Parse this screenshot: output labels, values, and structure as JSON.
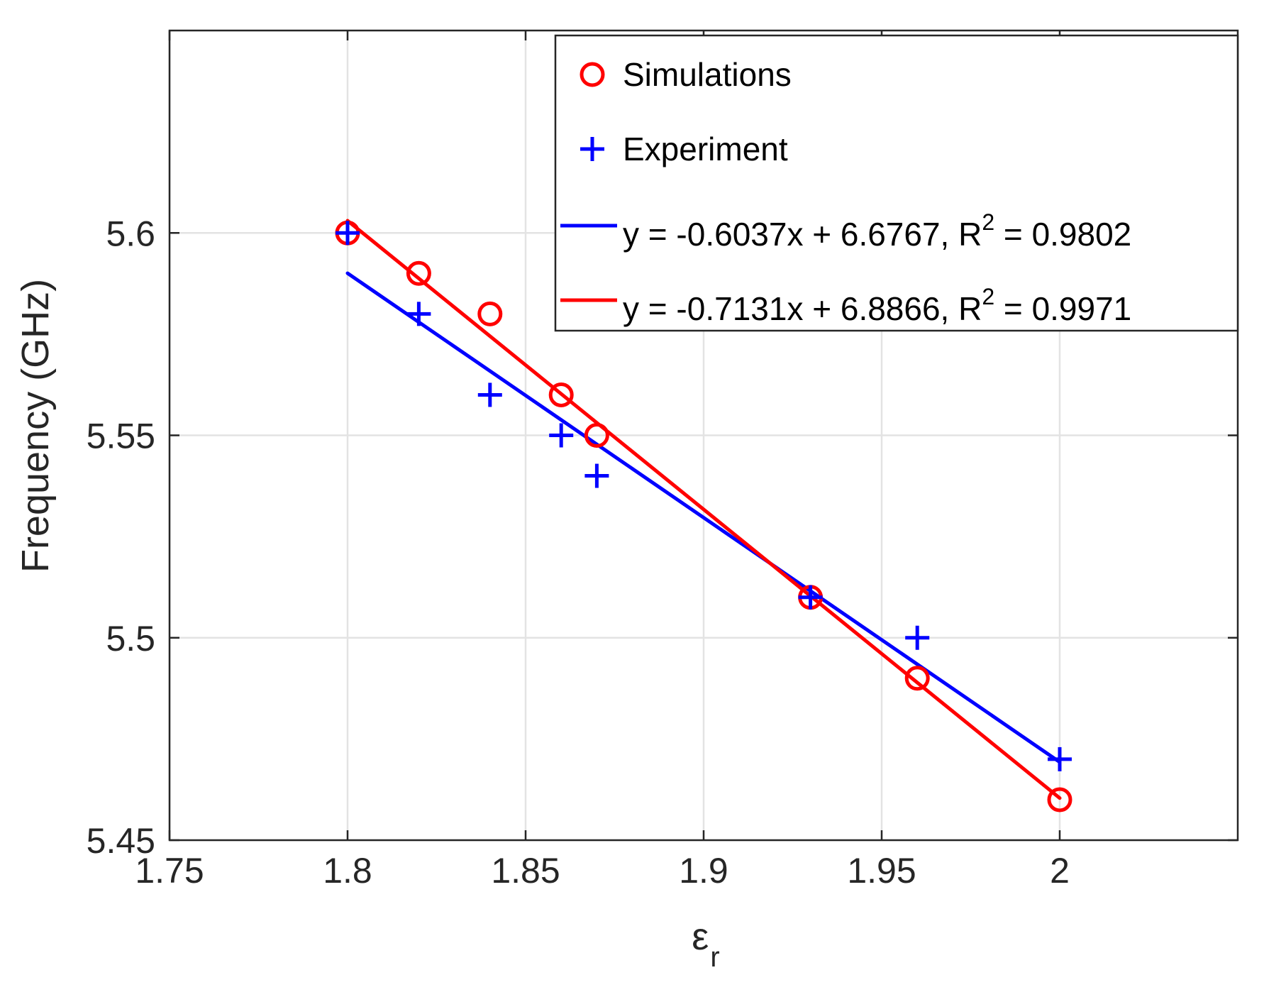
{
  "chart_data": {
    "type": "scatter",
    "xlabel": "ε",
    "xlabel_sub": "r",
    "ylabel": "Frequency (GHz)",
    "xlim": [
      1.75,
      2.05
    ],
    "ylim": [
      5.45,
      5.65
    ],
    "x_ticks": [
      1.75,
      1.8,
      1.85,
      1.9,
      1.95,
      2
    ],
    "x_tick_labels": [
      "1.75",
      "1.8",
      "1.85",
      "1.9",
      "1.95",
      "2"
    ],
    "y_ticks": [
      5.45,
      5.5,
      5.55,
      5.6
    ],
    "y_tick_labels": [
      "5.45",
      "5.5",
      "5.55",
      "5.6"
    ],
    "grid": true,
    "legend_position": "top-right",
    "series": [
      {
        "name": "Simulations",
        "marker": "circle",
        "color": "#ff0000",
        "x": [
          1.8,
          1.82,
          1.84,
          1.86,
          1.87,
          1.93,
          1.96,
          2.0
        ],
        "y": [
          5.6,
          5.59,
          5.58,
          5.56,
          5.55,
          5.51,
          5.49,
          5.46
        ]
      },
      {
        "name": "Experiment",
        "marker": "plus",
        "color": "#0000ff",
        "x": [
          1.8,
          1.82,
          1.84,
          1.86,
          1.87,
          1.93,
          1.96,
          2.0
        ],
        "y": [
          5.6,
          5.58,
          5.56,
          5.55,
          5.54,
          5.51,
          5.5,
          5.47
        ]
      }
    ],
    "fits": [
      {
        "label_main": "y = -0.6037x + 6.6767, R",
        "label_sup": "2",
        "label_tail": " = 0.9802",
        "slope": -0.6037,
        "intercept": 6.6767,
        "x_range": [
          1.8,
          2.0
        ],
        "color": "#0000ff"
      },
      {
        "label_main": "y = -0.7131x + 6.8866, R",
        "label_sup": "2",
        "label_tail": " = 0.9971",
        "slope": -0.7131,
        "intercept": 6.8866,
        "x_range": [
          1.8,
          2.0
        ],
        "color": "#ff0000"
      }
    ]
  }
}
